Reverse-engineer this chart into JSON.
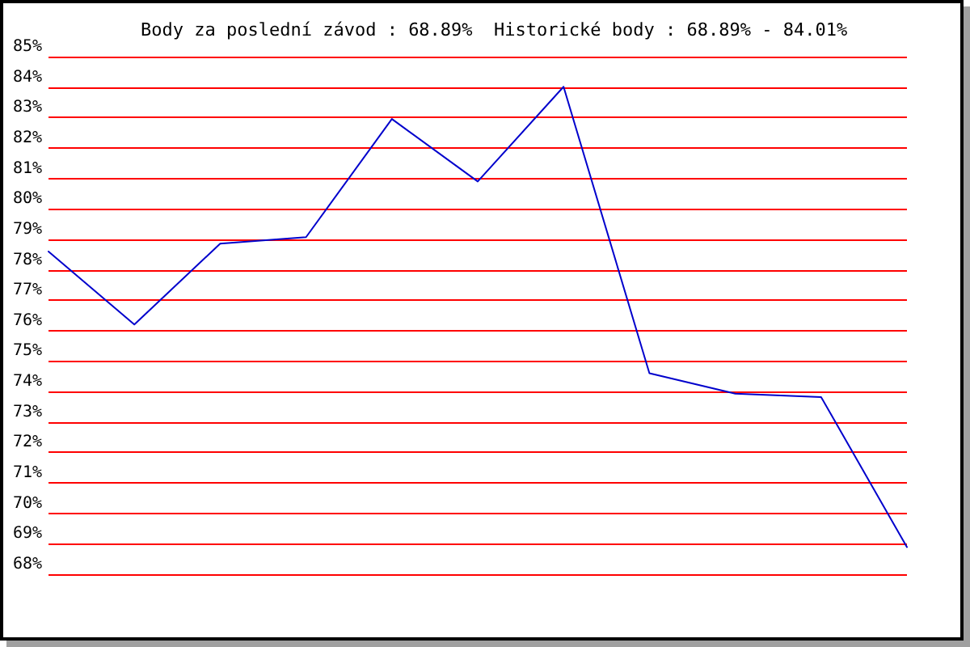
{
  "chart_data": {
    "type": "line",
    "title": "Body za poslední závod : 68.89%  Historické body : 68.89% - 84.01%",
    "categories": [
      null,
      null,
      null,
      null,
      null,
      null,
      null,
      null,
      null,
      null,
      null
    ],
    "series": [
      {
        "color": "#0000cc",
        "values": [
          78.6,
          76.2,
          78.86,
          79.07,
          82.95,
          80.9,
          84.01,
          74.6,
          73.93,
          73.82,
          68.89
        ]
      }
    ],
    "ylim": [
      68,
      85
    ],
    "yticks": [
      {
        "value": 68,
        "label": "68%"
      },
      {
        "value": 69,
        "label": "69%"
      },
      {
        "value": 70,
        "label": "70%"
      },
      {
        "value": 71,
        "label": "71%"
      },
      {
        "value": 72,
        "label": "72%"
      },
      {
        "value": 73,
        "label": "73%"
      },
      {
        "value": 74,
        "label": "74%"
      },
      {
        "value": 75,
        "label": "75%"
      },
      {
        "value": 76,
        "label": "76%"
      },
      {
        "value": 77,
        "label": "77%"
      },
      {
        "value": 78,
        "label": "78%"
      },
      {
        "value": 79,
        "label": "79%"
      },
      {
        "value": 80,
        "label": "80%"
      },
      {
        "value": 81,
        "label": "81%"
      },
      {
        "value": 82,
        "label": "82%"
      },
      {
        "value": 83,
        "label": "83%"
      },
      {
        "value": 84,
        "label": "84%"
      },
      {
        "value": 85,
        "label": "85%"
      }
    ],
    "grid": "y",
    "marker": "none"
  }
}
